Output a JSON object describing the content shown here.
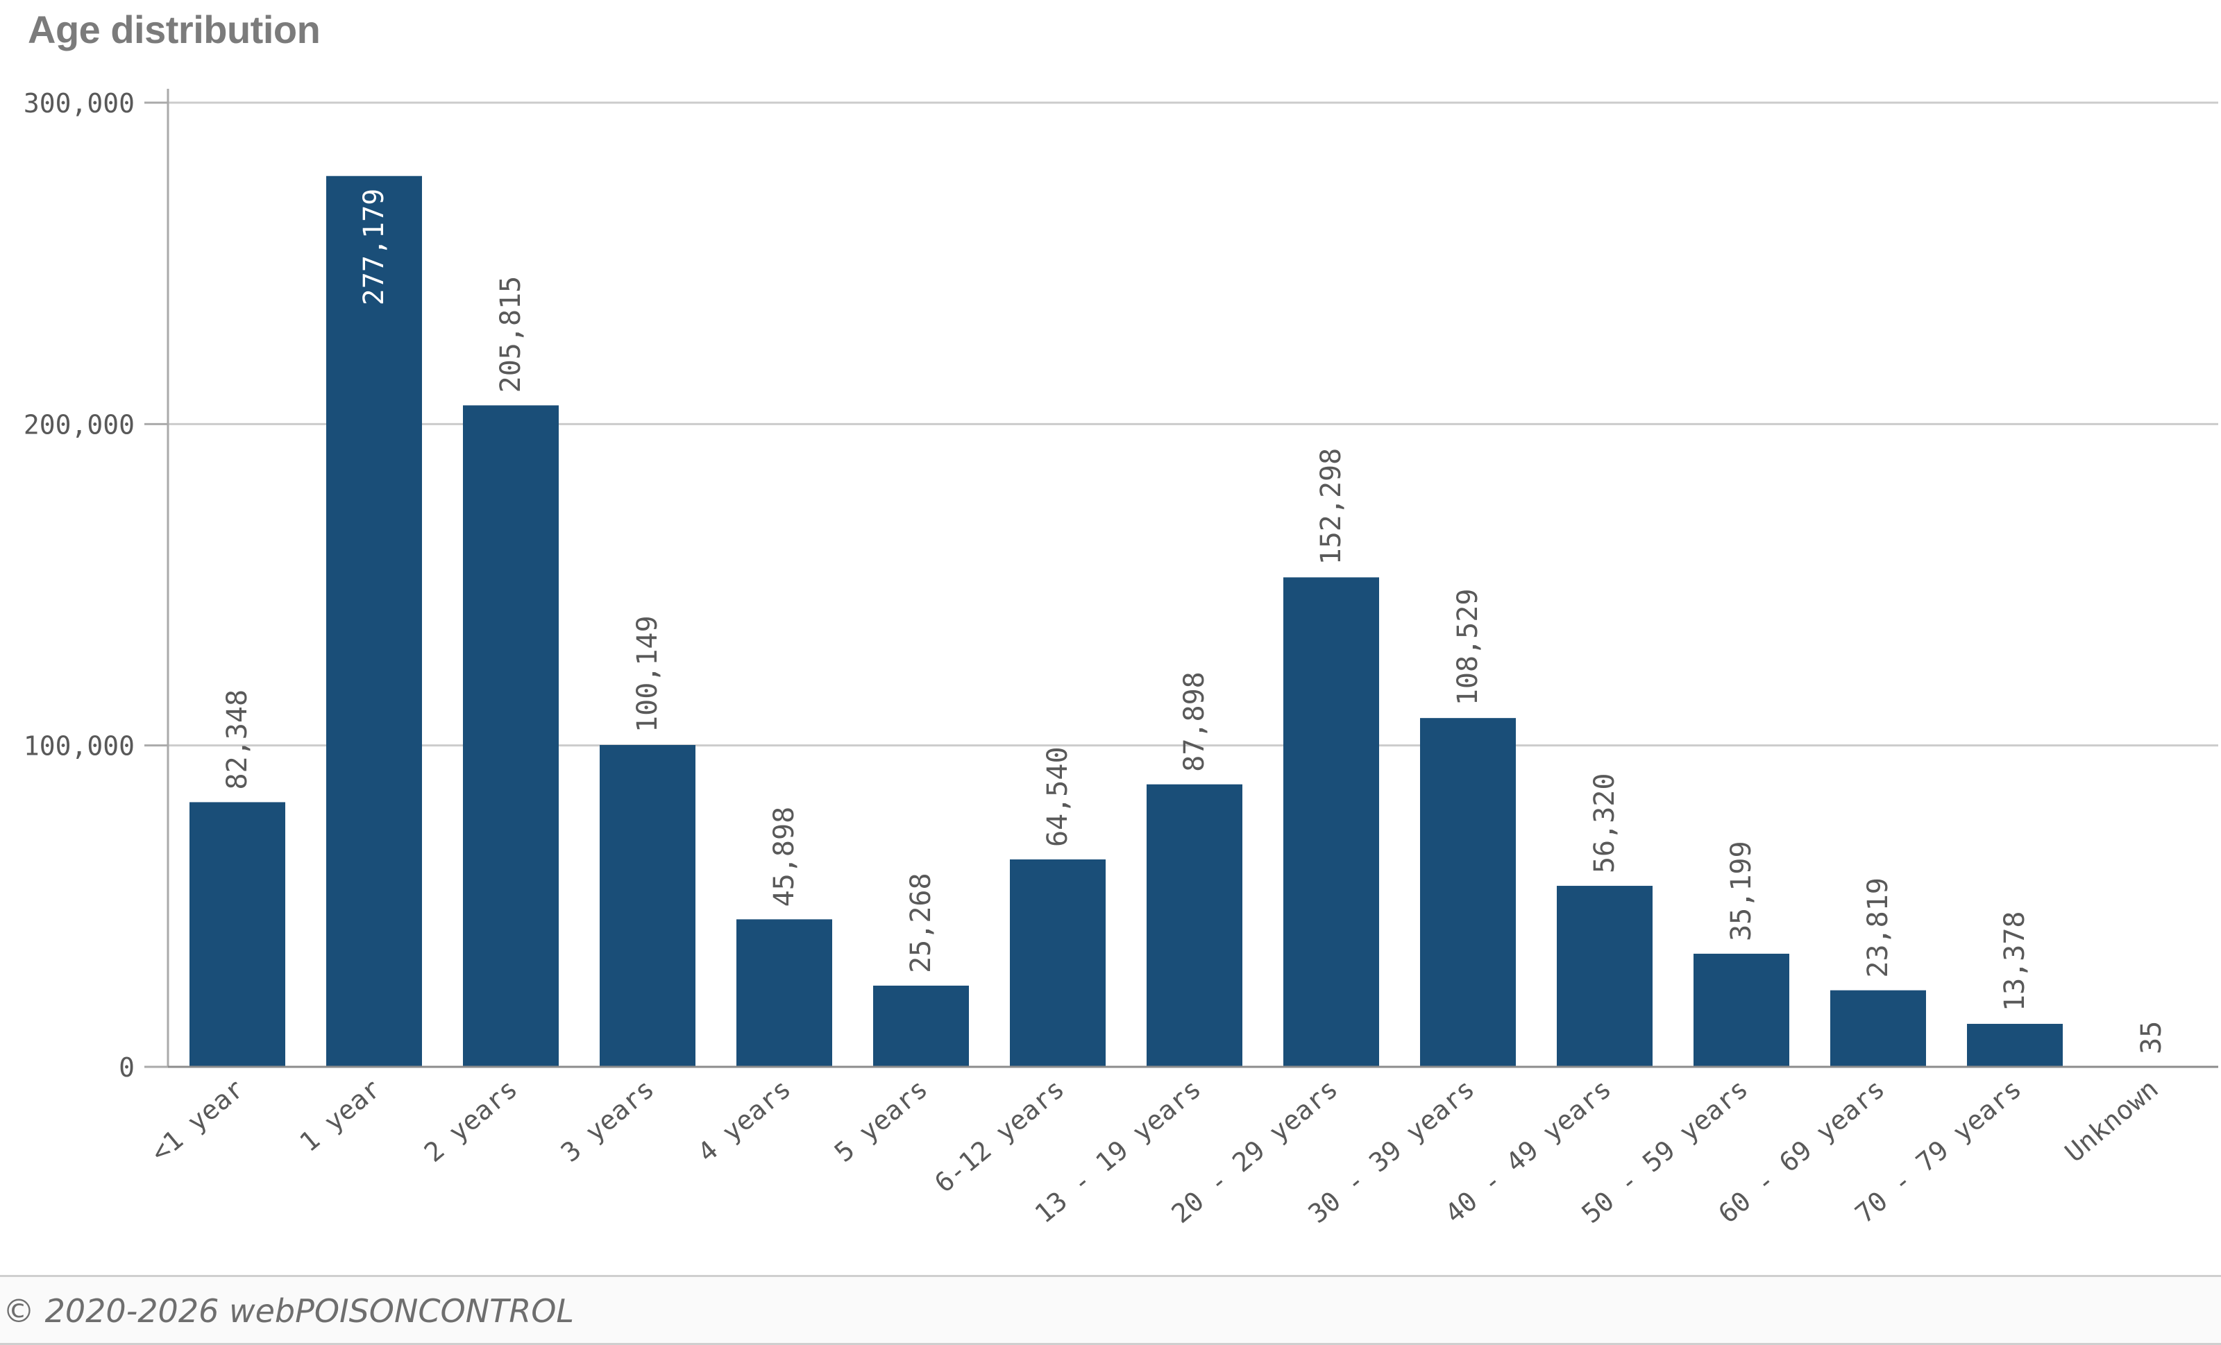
{
  "chart_data": {
    "type": "bar",
    "title": "Age distribution",
    "xlabel": "",
    "ylabel": "",
    "ylim": [
      0,
      300000
    ],
    "yticks": [
      {
        "value": 0,
        "label": "0"
      },
      {
        "value": 100000,
        "label": "100,000"
      },
      {
        "value": 200000,
        "label": "200,000"
      },
      {
        "value": 300000,
        "label": "300,000"
      }
    ],
    "grid": true,
    "bar_color": "#1a4e78",
    "categories": [
      "<1 year",
      "1 year",
      "2 years",
      "3 years",
      "4 years",
      "5 years",
      "6-12 years",
      "13 - 19 years",
      "20 - 29 years",
      "30 - 39 years",
      "40 - 49 years",
      "50 - 59 years",
      "60 - 69 years",
      "70 - 79 years",
      "Unknown"
    ],
    "values": [
      82348,
      277179,
      205815,
      100149,
      45898,
      25268,
      64540,
      87898,
      152298,
      108529,
      56320,
      35199,
      23819,
      13378,
      35
    ],
    "value_labels": [
      "82,348",
      "277,179",
      "205,815",
      "100,149",
      "45,898",
      "25,268",
      "64,540",
      "87,898",
      "152,298",
      "108,529",
      "56,320",
      "35,199",
      "23,819",
      "13,378",
      "35"
    ]
  },
  "footer": {
    "copyright": "© 2020-2026 webPOISONCONTROL"
  }
}
